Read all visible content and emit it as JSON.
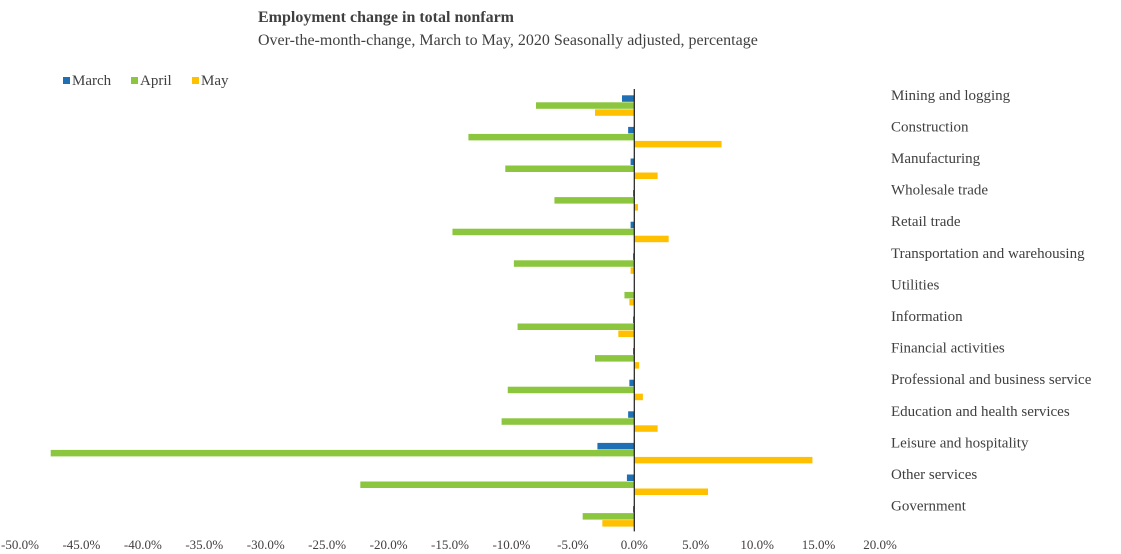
{
  "chart_data": {
    "type": "bar",
    "orientation": "horizontal",
    "title": "Employment change in total nonfarm",
    "subtitle": "Over-the-month-change, March to May, 2020 Seasonally adjusted, percentage",
    "categories": [
      "Mining and logging",
      "Construction",
      "Manufacturing",
      "Wholesale trade",
      "Retail trade",
      "Transportation and warehousing",
      "Utilities",
      "Information",
      "Financial activities",
      "Professional and business service",
      "Education and health services",
      "Leisure and hospitality",
      "Other services",
      "Government"
    ],
    "series": [
      {
        "name": "March",
        "color": "#1f6fb4",
        "values": [
          -1.0,
          -0.5,
          -0.3,
          -0.1,
          -0.3,
          -0.1,
          0.0,
          -0.1,
          -0.1,
          -0.4,
          -0.5,
          -3.0,
          -0.6,
          -0.1
        ]
      },
      {
        "name": "April",
        "color": "#8cc63f",
        "values": [
          -8.0,
          -13.5,
          -10.5,
          -6.5,
          -14.8,
          -9.8,
          -0.8,
          -9.5,
          -3.2,
          -10.3,
          -10.8,
          -47.5,
          -22.3,
          -4.2
        ]
      },
      {
        "name": "May",
        "color": "#ffc000",
        "values": [
          -3.2,
          7.1,
          1.9,
          0.3,
          2.8,
          -0.3,
          -0.4,
          -1.3,
          0.4,
          0.7,
          1.9,
          14.5,
          6.0,
          -2.6
        ]
      }
    ],
    "xlim": [
      -50,
      20
    ],
    "xticks": [
      "-50.0%",
      "-45.0%",
      "-40.0%",
      "-35.0%",
      "-30.0%",
      "-25.0%",
      "-20.0%",
      "-15.0%",
      "-10.0%",
      "-5.0%",
      "0.0%",
      "5.0%",
      "10.0%",
      "15.0%",
      "20.0%"
    ],
    "legend_position": "top-left",
    "grid": false
  }
}
